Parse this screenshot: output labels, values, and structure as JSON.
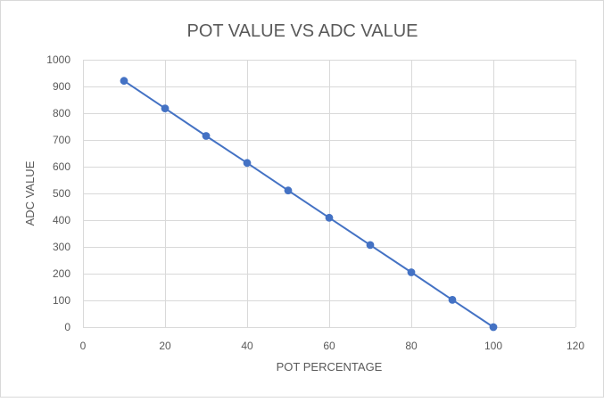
{
  "chart_data": {
    "type": "scatter",
    "title": "POT VALUE VS ADC VALUE",
    "xlabel": "POT PERCENTAGE",
    "ylabel": "ADC VALUE",
    "xlim": [
      0,
      120
    ],
    "ylim": [
      0,
      1000
    ],
    "xticks": [
      0,
      20,
      40,
      60,
      80,
      100,
      120
    ],
    "yticks": [
      0,
      100,
      200,
      300,
      400,
      500,
      600,
      700,
      800,
      900,
      1000
    ],
    "grid": true,
    "legend": "none",
    "series": [
      {
        "x": [
          10,
          20,
          30,
          40,
          50,
          60,
          70,
          80,
          90,
          100
        ],
        "y": [
          921,
          818,
          715,
          614,
          511,
          409,
          307,
          205,
          102,
          0
        ],
        "color": "#4472C4",
        "markers": true,
        "line": true
      }
    ],
    "colors": {
      "gridline": "#D9D9D9",
      "text": "#595959",
      "sheet_grid": "#E1E1E1"
    }
  }
}
